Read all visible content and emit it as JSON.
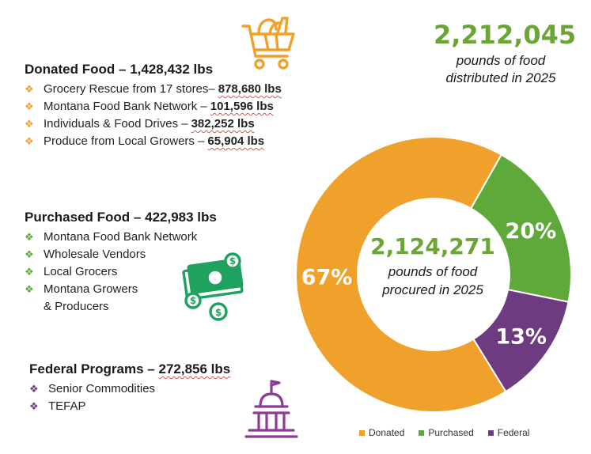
{
  "summary": {
    "distributed_value": "2,212,045",
    "distributed_line1": "pounds of food",
    "distributed_line2": "distributed in 2025",
    "procured_value": "2,124,271",
    "procured_line1": "pounds of food",
    "procured_line2": "procured in 2025"
  },
  "donated": {
    "heading": "Donated Food –",
    "amount": "1,428,432 lbs",
    "items": [
      {
        "label": "Grocery Rescue from 17 stores–",
        "amount": "878,680 lbs"
      },
      {
        "label": "Montana Food Bank Network –",
        "amount": "101,596 lbs"
      },
      {
        "label": "Individuals & Food Drives –",
        "amount": "382,252 lbs"
      },
      {
        "label": "Produce from Local Growers –",
        "amount": "65,904 lbs"
      }
    ]
  },
  "purchased": {
    "heading": "Purchased Food –",
    "amount": "422,983 lbs",
    "items": [
      "Montana Food Bank Network",
      "Wholesale Vendors",
      "Local Grocers",
      "Montana Growers",
      "& Producers"
    ]
  },
  "federal": {
    "heading": "Federal Programs –",
    "amount": "272,856 lbs",
    "items": [
      "Senior Commodities",
      "TEFAP"
    ]
  },
  "icons": {
    "basket": "shopping-basket-icon",
    "money": "money-bills-coins-icon",
    "capitol": "capitol-building-icon"
  },
  "colors": {
    "donated": "#f0a12b",
    "purchased": "#5fa83a",
    "federal": "#6e3b80",
    "headline_green": "#6aa535"
  },
  "chart_data": {
    "type": "pie",
    "categories": [
      "Donated",
      "Purchased",
      "Federal"
    ],
    "values": [
      67,
      20,
      13
    ],
    "labels": [
      "67%",
      "20%",
      "13%"
    ],
    "colors": [
      "#f0a12b",
      "#5fa83a",
      "#6e3b80"
    ],
    "legend": [
      "Donated",
      "Purchased",
      "Federal"
    ],
    "legend_position": "bottom"
  }
}
